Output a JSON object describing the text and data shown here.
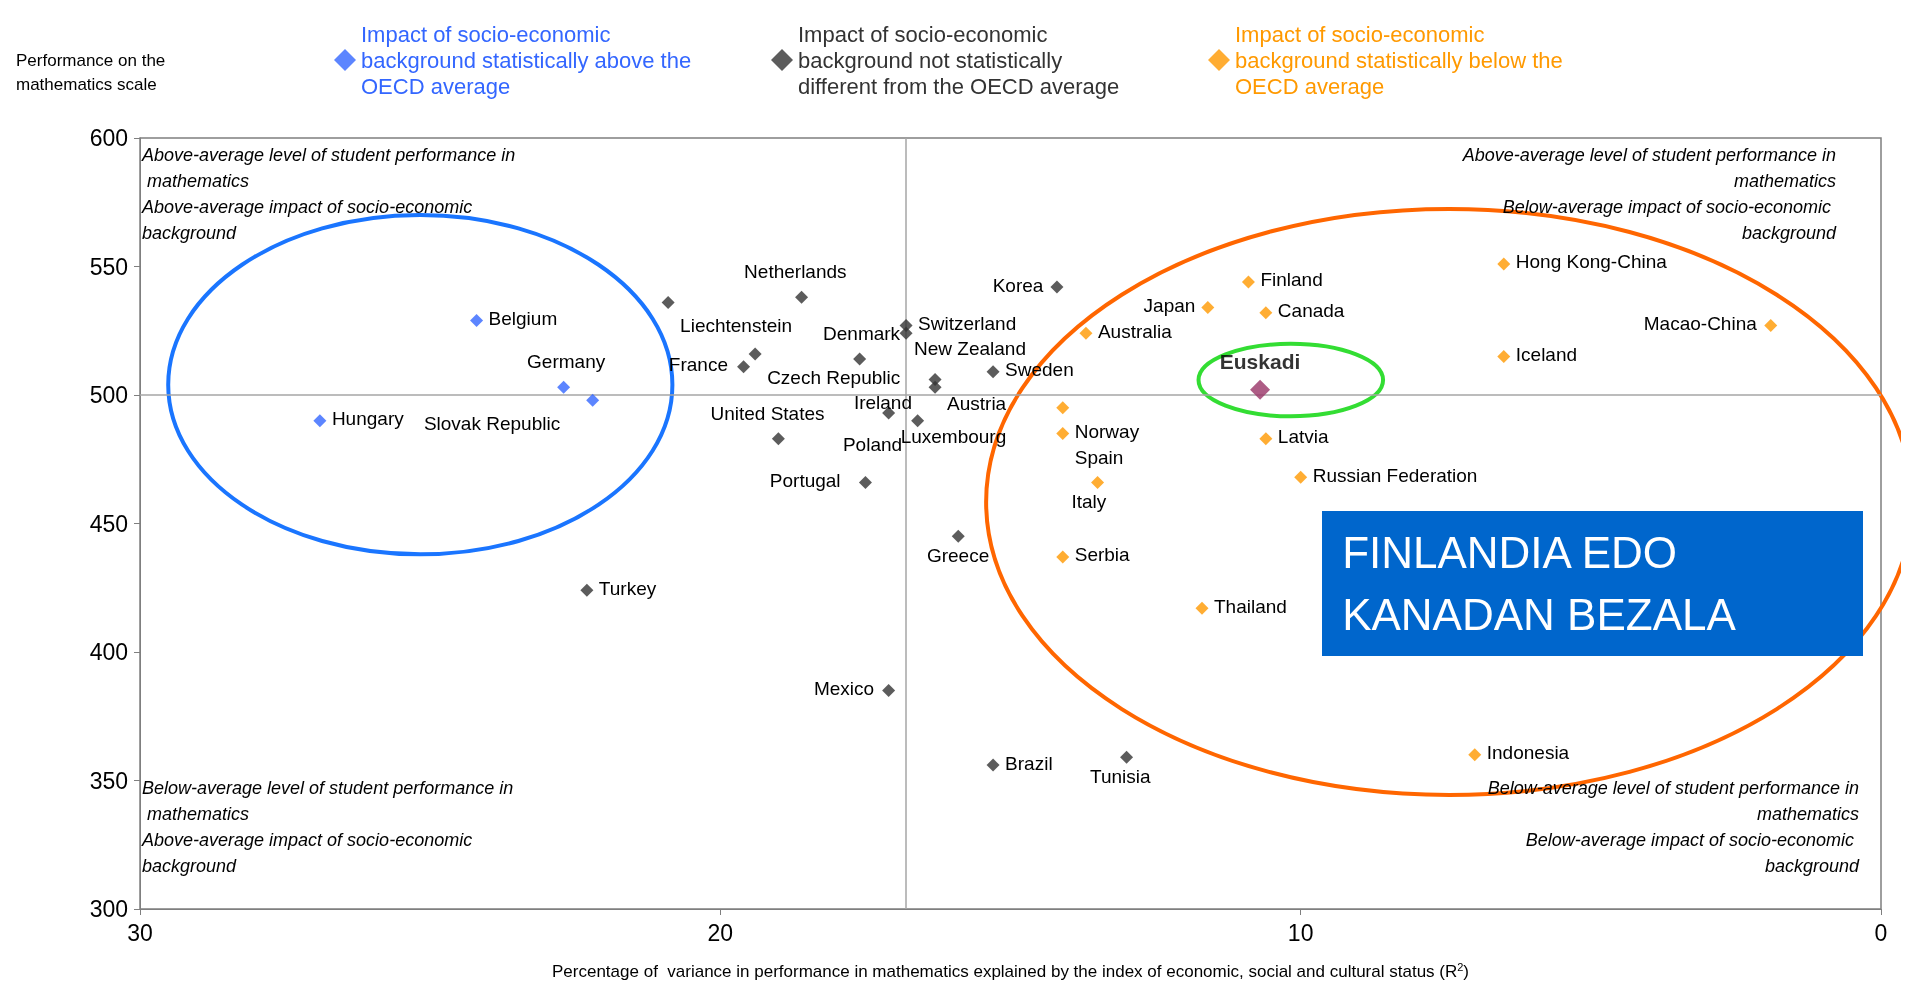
{
  "chart_data": {
    "type": "scatter",
    "xlabel": "Percentage of  variance in performance in mathematics explained by the index of economic, social and cultural status (R$^{2}$)",
    "ylabel": "Performance on the mathematics scale",
    "xlim": [
      30,
      0
    ],
    "xticks": [
      30,
      20,
      10,
      0
    ],
    "ylim": [
      300,
      600
    ],
    "yticks": [
      300,
      350,
      400,
      450,
      500,
      550,
      600
    ],
    "marker": "diamond",
    "legend": "top",
    "ref_lines": [
      {
        "axis": "x",
        "value": 16.8,
        "color": "#a6a6a6"
      },
      {
        "axis": "y",
        "value": 500,
        "color": "#a6a6a6"
      }
    ],
    "series": [
      {
        "name": "Impact of socio-economic background statistically above the OECD average",
        "color": "#3366ff",
        "x": [
          26.9,
          24.2,
          22.7,
          22.2
        ],
        "values": [
          490,
          529,
          503,
          498
        ]
      },
      {
        "name": "Impact of socio-economic background not statistically different from the OECD average",
        "color": "#333333",
        "x": [
          20.9,
          18.6,
          19.4,
          19.6,
          16.8,
          16.8,
          17.6,
          16.3,
          16.3,
          17.1,
          16.6,
          15.3,
          14.2,
          19.0,
          17.5,
          15.9,
          22.3,
          17.1,
          15.3,
          13.0
        ],
        "values": [
          536,
          538,
          516,
          511,
          527,
          524,
          514,
          506,
          503,
          493,
          490,
          509,
          542,
          483,
          466,
          445,
          424,
          385,
          356,
          359
        ]
      },
      {
        "name": "Impact of socio-economic background statistically below the OECD average",
        "color": "#ff9900",
        "x": [
          11.6,
          10.9,
          10.6,
          13.7,
          14.1,
          14.1,
          13.5,
          14.1,
          10.6,
          10.0,
          11.7,
          6.5,
          6.5,
          1.9,
          7.0
        ],
        "values": [
          534,
          544,
          532,
          524,
          495,
          485,
          466,
          437,
          483,
          468,
          417,
          551,
          515,
          527,
          360
        ]
      },
      {
        "name": "Euskadi",
        "color": "#993366",
        "x": [
          10.7
        ],
        "values": [
          502
        ]
      }
    ],
    "annotations": [
      "Above-average level of student performance in mathematics\nAbove-average impact of socio-economic background",
      "Above-average level of student performance in mathematics\nBelow-average impact of socio-economic background",
      "Below-average level of student performance in mathematics\nAbove-average impact of socio-economic background",
      "Below-average level of student performance in mathematics\nBelow-average impact of socio-economic background",
      "FINLANDIA EDO KANADAN BEZALA",
      {
        "text": "Hungary",
        "x": 26.9,
        "y": 490
      },
      {
        "text": "Belgium",
        "x": 24.2,
        "y": 529
      },
      {
        "text": "Germany",
        "x": 22.7,
        "y": 503
      },
      {
        "text": "Slovak Republic",
        "x": 22.2,
        "y": 498
      },
      {
        "text": "Liechtenstein",
        "x": 20.9,
        "y": 536
      },
      {
        "text": "Netherlands",
        "x": 18.6,
        "y": 538
      },
      {
        "text": "Czech Republic",
        "x": 19.4,
        "y": 516
      },
      {
        "text": "France",
        "x": 19.6,
        "y": 511
      },
      {
        "text": "Switzerland",
        "x": 16.8,
        "y": 527
      },
      {
        "text": "New Zealand",
        "x": 16.8,
        "y": 524
      },
      {
        "text": "Denmark",
        "x": 17.6,
        "y": 514
      },
      {
        "text": "Austria",
        "x": 16.3,
        "y": 506
      },
      {
        "text": "Ireland",
        "x": 16.3,
        "y": 503
      },
      {
        "text": "Luxembourg",
        "x": 17.1,
        "y": 493
      },
      {
        "text": "Poland",
        "x": 16.6,
        "y": 490
      },
      {
        "text": "Sweden",
        "x": 15.3,
        "y": 509
      },
      {
        "text": "Korea",
        "x": 14.2,
        "y": 542
      },
      {
        "text": "United States",
        "x": 19.0,
        "y": 483
      },
      {
        "text": "Portugal",
        "x": 17.5,
        "y": 466
      },
      {
        "text": "Greece",
        "x": 15.9,
        "y": 445
      },
      {
        "text": "Turkey",
        "x": 22.3,
        "y": 424
      },
      {
        "text": "Mexico",
        "x": 17.1,
        "y": 385
      },
      {
        "text": "Brazil",
        "x": 15.3,
        "y": 356
      },
      {
        "text": "Tunisia",
        "x": 13.0,
        "y": 359
      },
      {
        "text": "Japan",
        "x": 11.6,
        "y": 534
      },
      {
        "text": "Finland",
        "x": 10.9,
        "y": 544
      },
      {
        "text": "Canada",
        "x": 10.6,
        "y": 532
      },
      {
        "text": "Australia",
        "x": 13.7,
        "y": 524
      },
      {
        "text": "Norway",
        "x": 14.1,
        "y": 495
      },
      {
        "text": "Spain",
        "x": 14.1,
        "y": 485
      },
      {
        "text": "Italy",
        "x": 13.5,
        "y": 466
      },
      {
        "text": "Serbia",
        "x": 14.1,
        "y": 437
      },
      {
        "text": "Latvia",
        "x": 10.6,
        "y": 483
      },
      {
        "text": "Russian Federation",
        "x": 10.0,
        "y": 468
      },
      {
        "text": "Thailand",
        "x": 11.7,
        "y": 417
      },
      {
        "text": "Hong Kong-China",
        "x": 6.5,
        "y": 551
      },
      {
        "text": "Iceland",
        "x": 6.5,
        "y": 515
      },
      {
        "text": "Macao-China",
        "x": 1.9,
        "y": 527
      },
      {
        "text": "Indonesia",
        "x": 7.0,
        "y": 360
      }
    ]
  }
}
